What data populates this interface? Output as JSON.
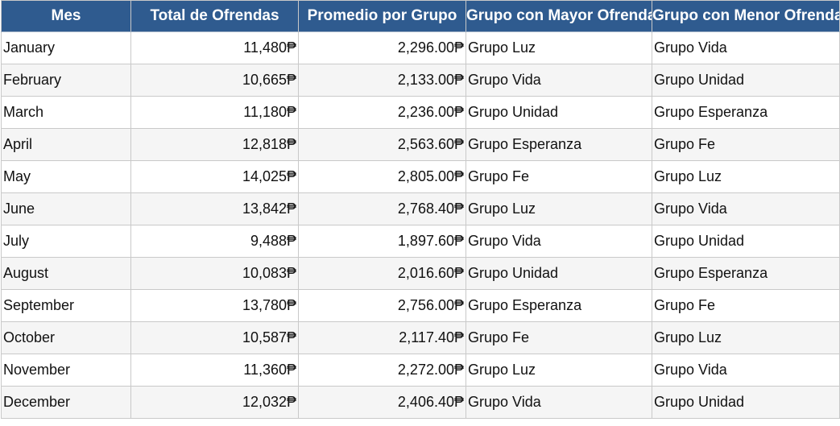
{
  "headers": [
    "Mes",
    "Total de Ofrendas",
    "Promedio por Grupo",
    "Grupo con Mayor Ofrenda",
    "Grupo con Menor Ofrenda"
  ],
  "rows": [
    {
      "mes": "January",
      "total": "11,480₱",
      "promedio": "2,296.00₱",
      "mayor": "Grupo Luz",
      "menor": "Grupo Vida"
    },
    {
      "mes": "February",
      "total": "10,665₱",
      "promedio": "2,133.00₱",
      "mayor": "Grupo Vida",
      "menor": "Grupo Unidad"
    },
    {
      "mes": "March",
      "total": "11,180₱",
      "promedio": "2,236.00₱",
      "mayor": "Grupo Unidad",
      "menor": "Grupo Esperanza"
    },
    {
      "mes": "April",
      "total": "12,818₱",
      "promedio": "2,563.60₱",
      "mayor": "Grupo Esperanza",
      "menor": "Grupo Fe"
    },
    {
      "mes": "May",
      "total": "14,025₱",
      "promedio": "2,805.00₱",
      "mayor": "Grupo Fe",
      "menor": "Grupo Luz"
    },
    {
      "mes": "June",
      "total": "13,842₱",
      "promedio": "2,768.40₱",
      "mayor": "Grupo Luz",
      "menor": "Grupo Vida"
    },
    {
      "mes": "July",
      "total": "9,488₱",
      "promedio": "1,897.60₱",
      "mayor": "Grupo Vida",
      "menor": "Grupo Unidad"
    },
    {
      "mes": "August",
      "total": "10,083₱",
      "promedio": "2,016.60₱",
      "mayor": "Grupo Unidad",
      "menor": "Grupo Esperanza"
    },
    {
      "mes": "September",
      "total": "13,780₱",
      "promedio": "2,756.00₱",
      "mayor": "Grupo Esperanza",
      "menor": "Grupo Fe"
    },
    {
      "mes": "October",
      "total": "10,587₱",
      "promedio": "2,117.40₱",
      "mayor": "Grupo Fe",
      "menor": "Grupo Luz"
    },
    {
      "mes": "November",
      "total": "11,360₱",
      "promedio": "2,272.00₱",
      "mayor": "Grupo Luz",
      "menor": "Grupo Vida"
    },
    {
      "mes": "December",
      "total": "12,032₱",
      "promedio": "2,406.40₱",
      "mayor": "Grupo Vida",
      "menor": "Grupo Unidad"
    }
  ],
  "colors": {
    "header_bg": "#2f5b8f",
    "header_text": "#ffffff",
    "row_alt_bg": "#f5f5f5",
    "gridline": "#c9c9c9"
  }
}
